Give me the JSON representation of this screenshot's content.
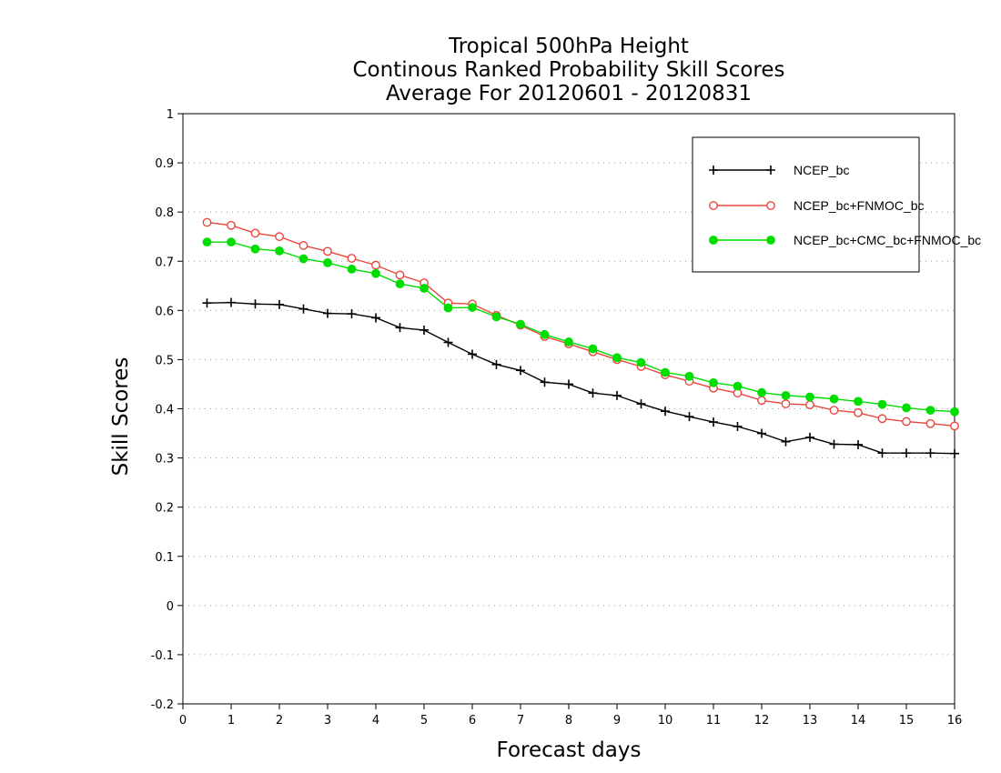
{
  "chart_data": {
    "type": "line",
    "title": [
      "Tropical 500hPa Height",
      "Continous Ranked Probability Skill Scores",
      "Average For 20120601 - 20120831"
    ],
    "xlabel": "Forecast days",
    "ylabel": "Skill Scores",
    "xlim": [
      0,
      16
    ],
    "ylim": [
      -0.2,
      1
    ],
    "x_ticks": [
      0,
      1,
      2,
      3,
      4,
      5,
      6,
      7,
      8,
      9,
      10,
      11,
      12,
      13,
      14,
      15,
      16
    ],
    "y_ticks": [
      -0.2,
      -0.1,
      0,
      0.1,
      0.2,
      0.3,
      0.4,
      0.5,
      0.6,
      0.7,
      0.8,
      0.9,
      1
    ],
    "y_tick_labels": [
      "-0.2",
      "-0.1",
      "0",
      "0.1",
      "0.2",
      "0.3",
      "0.4",
      "0.5",
      "0.6",
      "0.7",
      "0.8",
      "0.9",
      "1"
    ],
    "grid": "horizontal dotted",
    "legend_position": "top-right",
    "x": [
      0.5,
      1,
      1.5,
      2,
      2.5,
      3,
      3.5,
      4,
      4.5,
      5,
      5.5,
      6,
      6.5,
      7,
      7.5,
      8,
      8.5,
      9,
      9.5,
      10,
      10.5,
      11,
      11.5,
      12,
      12.5,
      13,
      13.5,
      14,
      14.5,
      15,
      15.5,
      16
    ],
    "series": [
      {
        "name": "NCEP_bc",
        "color": "#000000",
        "marker": "plus",
        "values": [
          0.615,
          0.616,
          0.613,
          0.612,
          0.603,
          0.594,
          0.593,
          0.585,
          0.565,
          0.56,
          0.535,
          0.511,
          0.49,
          0.478,
          0.454,
          0.45,
          0.432,
          0.427,
          0.41,
          0.395,
          0.384,
          0.373,
          0.364,
          0.35,
          0.333,
          0.342,
          0.328,
          0.327,
          0.31,
          0.31,
          0.31,
          0.309
        ]
      },
      {
        "name": "NCEP_bc+FNMOC_bc",
        "color": "#e8483f",
        "marker": "open-circle",
        "values": [
          0.779,
          0.773,
          0.757,
          0.75,
          0.732,
          0.72,
          0.706,
          0.692,
          0.672,
          0.656,
          0.615,
          0.613,
          0.59,
          0.57,
          0.547,
          0.532,
          0.516,
          0.5,
          0.486,
          0.469,
          0.456,
          0.442,
          0.432,
          0.417,
          0.41,
          0.408,
          0.397,
          0.392,
          0.38,
          0.374,
          0.37,
          0.365
        ]
      },
      {
        "name": "NCEP_bc+CMC_bc+FNMOC_bc",
        "color": "#00dd00",
        "marker": "filled-circle",
        "values": [
          0.739,
          0.739,
          0.725,
          0.721,
          0.705,
          0.697,
          0.684,
          0.675,
          0.654,
          0.645,
          0.605,
          0.606,
          0.587,
          0.572,
          0.551,
          0.536,
          0.522,
          0.504,
          0.494,
          0.474,
          0.466,
          0.453,
          0.446,
          0.433,
          0.427,
          0.424,
          0.42,
          0.415,
          0.409,
          0.402,
          0.397,
          0.394
        ]
      }
    ]
  }
}
